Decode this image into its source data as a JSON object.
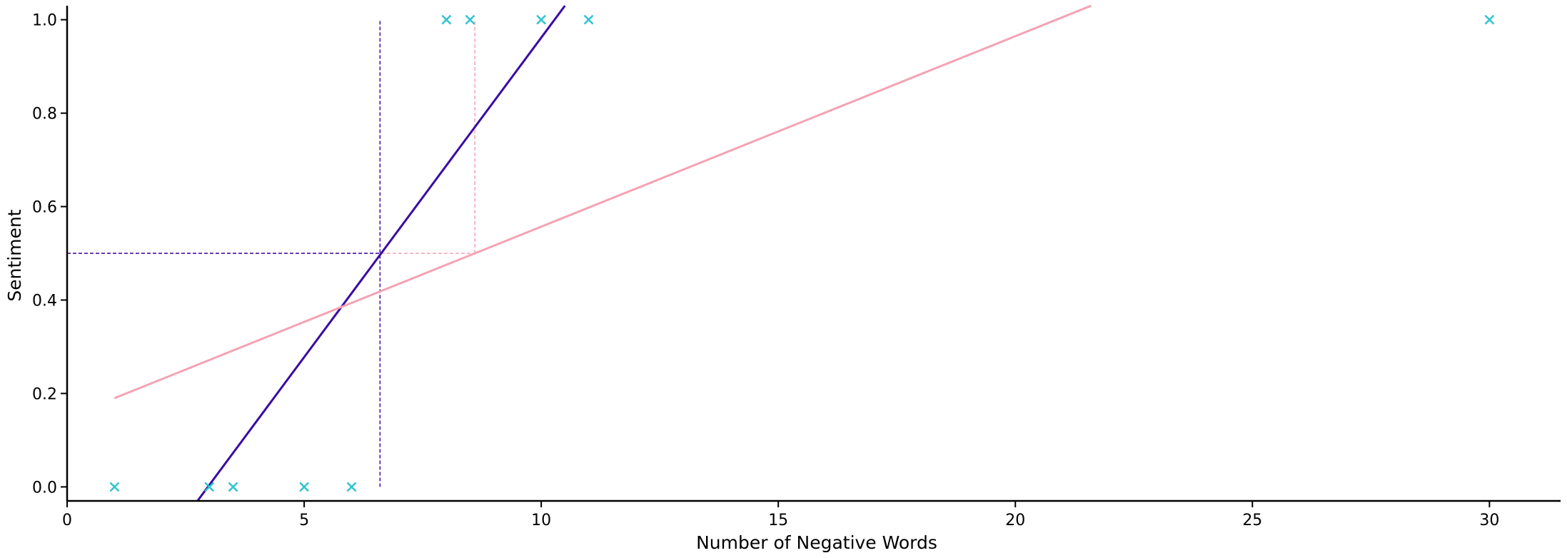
{
  "chart_data": {
    "type": "scatter",
    "title": "",
    "xlabel": "Number of Negative Words",
    "ylabel": "Sentiment",
    "xlim": [
      0,
      31.5
    ],
    "ylim": [
      -0.03,
      1.03
    ],
    "x_ticks": [
      0,
      5,
      10,
      15,
      20,
      25,
      30
    ],
    "y_ticks": [
      0.0,
      0.2,
      0.4,
      0.6,
      0.8,
      1.0
    ],
    "x_tick_labels": [
      "0",
      "5",
      "10",
      "15",
      "20",
      "25",
      "30"
    ],
    "y_tick_labels": [
      "0.0",
      "0.2",
      "0.4",
      "0.6",
      "0.8",
      "1.0"
    ],
    "grid": false,
    "points": {
      "marker": "x",
      "color": "#2ec4cf",
      "x": [
        1,
        3,
        3.5,
        5,
        6,
        8,
        8.5,
        10,
        11,
        30
      ],
      "y": [
        0,
        0,
        0,
        0,
        0,
        1,
        1,
        1,
        1,
        1
      ]
    },
    "lines": [
      {
        "color": "#3a0ca3",
        "x": [
          2.75,
          10.5
        ],
        "y": [
          -0.03,
          1.03
        ]
      },
      {
        "color": "#f4a3b3",
        "x": [
          1,
          21.6
        ],
        "y": [
          0.19,
          1.03
        ]
      }
    ],
    "reference_lines": [
      {
        "orientation": "vertical",
        "color": "#3a0ca3",
        "x": 6.6,
        "y": [
          0,
          1
        ]
      },
      {
        "orientation": "vertical",
        "color": "#f4a3b3",
        "x": 8.6,
        "y": [
          0.5,
          1
        ]
      },
      {
        "orientation": "horizontal",
        "color": "#f4a3b3",
        "y": 0.5,
        "x": [
          0,
          8.6
        ]
      },
      {
        "orientation": "horizontal",
        "color": "#3a0ca3",
        "y": 0.5,
        "x": [
          0,
          6.6
        ]
      }
    ]
  }
}
